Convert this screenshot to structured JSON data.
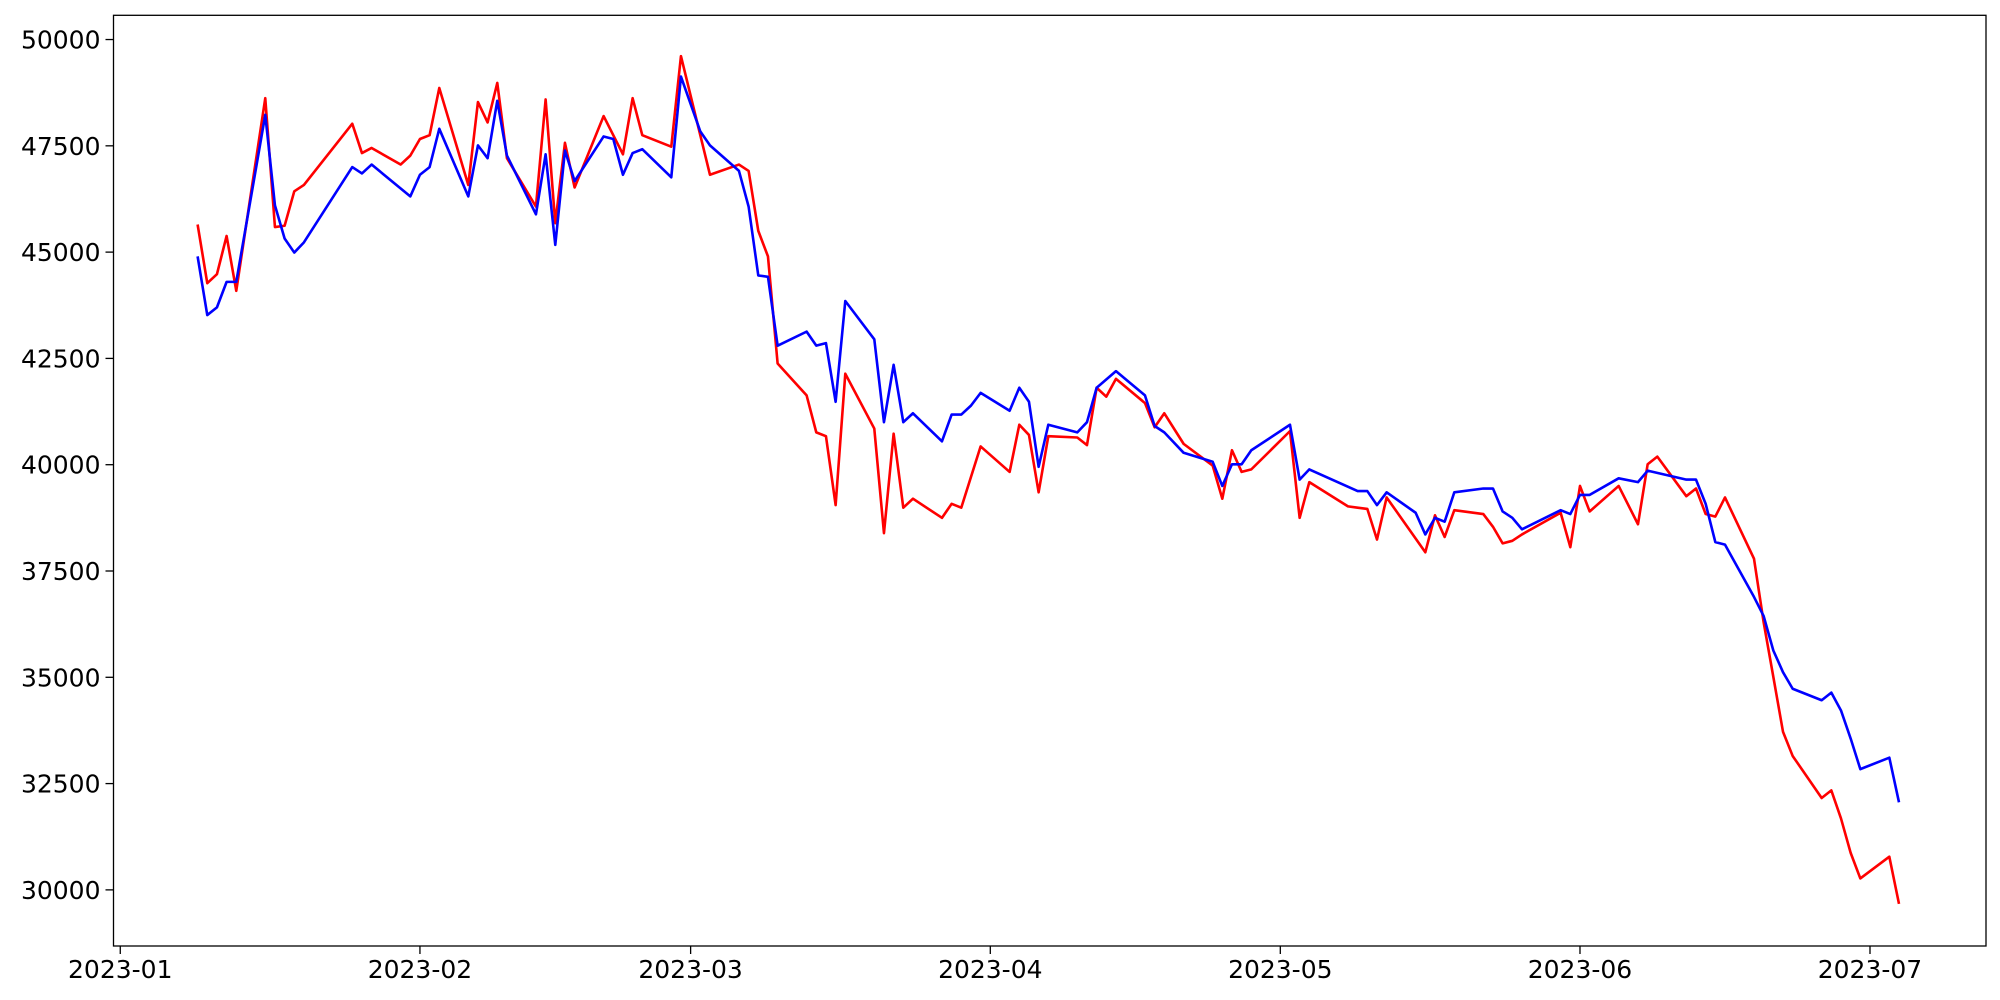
{
  "chart_data": {
    "type": "line",
    "xlim": [
      0.3,
      194
    ],
    "ylim": [
      28680,
      50570
    ],
    "xticks": [
      {
        "value": 1,
        "label": "2023-01"
      },
      {
        "value": 32,
        "label": "2023-02"
      },
      {
        "value": 60,
        "label": "2023-03"
      },
      {
        "value": 91,
        "label": "2023-04"
      },
      {
        "value": 121,
        "label": "2023-05"
      },
      {
        "value": 152,
        "label": "2023-06"
      },
      {
        "value": 182,
        "label": "2023-07"
      }
    ],
    "yticks": [
      30000,
      32500,
      35000,
      37500,
      40000,
      42500,
      45000,
      47500,
      50000
    ],
    "grid": false,
    "series": [
      {
        "color": "#ff0000",
        "x": [
          9,
          10,
          11,
          12,
          13,
          16,
          17,
          18,
          19,
          20,
          25,
          26,
          27,
          30,
          31,
          32,
          33,
          34,
          37,
          38,
          39,
          40,
          41,
          44,
          45,
          46,
          47,
          48,
          51,
          53,
          54,
          55,
          58,
          59,
          62,
          65,
          66,
          67,
          68,
          69,
          72,
          73,
          74,
          75,
          76,
          79,
          80,
          81,
          82,
          83,
          86,
          87,
          88,
          90,
          93,
          94,
          95,
          96,
          97,
          100,
          101,
          102,
          103,
          104,
          107,
          108,
          109,
          111,
          114,
          115,
          116,
          117,
          118,
          122,
          123,
          124,
          128,
          129,
          130,
          131,
          132,
          136,
          137,
          138,
          139,
          142,
          143,
          144,
          145,
          146,
          150,
          151,
          152,
          153,
          156,
          158,
          159,
          160,
          163,
          164,
          165,
          166,
          167,
          170,
          171,
          172,
          173,
          174,
          177,
          178,
          179,
          180,
          181,
          184,
          185
        ],
        "values": [
          45650,
          44270,
          44480,
          45380,
          44090,
          48620,
          45590,
          45620,
          46430,
          46580,
          48020,
          47330,
          47450,
          47060,
          47270,
          47660,
          47750,
          48860,
          46580,
          48530,
          48050,
          48980,
          47210,
          46070,
          48590,
          45680,
          47570,
          46520,
          48200,
          47300,
          48620,
          47750,
          47480,
          49610,
          46820,
          47060,
          46910,
          45500,
          44900,
          42380,
          41630,
          40760,
          40670,
          39050,
          42140,
          40850,
          38390,
          40730,
          38990,
          39200,
          38750,
          39080,
          38990,
          40430,
          39830,
          40940,
          40700,
          39350,
          40670,
          40640,
          40460,
          41810,
          41600,
          42020,
          41450,
          40880,
          41210,
          40490,
          39980,
          39200,
          40340,
          39830,
          39890,
          40790,
          38750,
          39590,
          39020,
          38990,
          38960,
          38240,
          39230,
          37940,
          38810,
          38300,
          38930,
          38840,
          38540,
          38150,
          38210,
          38360,
          38870,
          38060,
          39500,
          38900,
          39500,
          38600,
          40010,
          40190,
          39260,
          39440,
          38840,
          38780,
          39230,
          37790,
          36290,
          35010,
          33720,
          33150,
          32160,
          32340,
          31680,
          30870,
          30270,
          30780,
          29670
        ]
      },
      {
        "color": "#0000ff",
        "x": [
          9,
          10,
          11,
          12,
          13,
          16,
          17,
          18,
          19,
          20,
          25,
          26,
          27,
          31,
          32,
          33,
          34,
          37,
          38,
          39,
          40,
          41,
          44,
          45,
          46,
          47,
          48,
          51,
          52,
          53,
          54,
          55,
          58,
          59,
          61,
          62,
          65,
          66,
          67,
          68,
          69,
          72,
          73,
          74,
          75,
          76,
          79,
          80,
          81,
          82,
          83,
          86,
          87,
          88,
          89,
          90,
          93,
          94,
          95,
          96,
          97,
          100,
          101,
          102,
          104,
          107,
          108,
          109,
          111,
          114,
          115,
          116,
          117,
          118,
          122,
          123,
          124,
          129,
          130,
          131,
          132,
          135,
          136,
          137,
          138,
          139,
          142,
          143,
          144,
          145,
          146,
          150,
          151,
          152,
          153,
          156,
          158,
          159,
          163,
          164,
          165,
          166,
          167,
          170,
          171,
          172,
          173,
          174,
          177,
          178,
          179,
          180,
          181,
          184,
          185
        ],
        "values": [
          44900,
          43520,
          43700,
          44300,
          44300,
          48230,
          46100,
          45320,
          44990,
          45230,
          47000,
          46850,
          47060,
          46310,
          46820,
          47000,
          47900,
          46310,
          47510,
          47210,
          48560,
          47270,
          45890,
          47300,
          45170,
          47390,
          46670,
          47720,
          47660,
          46820,
          47330,
          47420,
          46760,
          49130,
          47840,
          47510,
          46910,
          46070,
          44450,
          44420,
          42800,
          43130,
          42800,
          42860,
          41480,
          43850,
          42950,
          41000,
          42350,
          41000,
          41210,
          40550,
          41180,
          41180,
          41390,
          41690,
          41270,
          41810,
          41480,
          39950,
          40940,
          40760,
          41000,
          41810,
          42200,
          41630,
          40910,
          40760,
          40280,
          40070,
          39500,
          40010,
          40010,
          40340,
          40940,
          39650,
          39890,
          39380,
          39380,
          39050,
          39350,
          38870,
          38360,
          38750,
          38660,
          39350,
          39440,
          39440,
          38900,
          38750,
          38480,
          38930,
          38840,
          39290,
          39290,
          39680,
          39590,
          39860,
          39650,
          39650,
          39080,
          38180,
          38120,
          36890,
          36440,
          35630,
          35120,
          34730,
          34460,
          34640,
          34220,
          33560,
          32840,
          33110,
          32060
        ]
      }
    ]
  }
}
